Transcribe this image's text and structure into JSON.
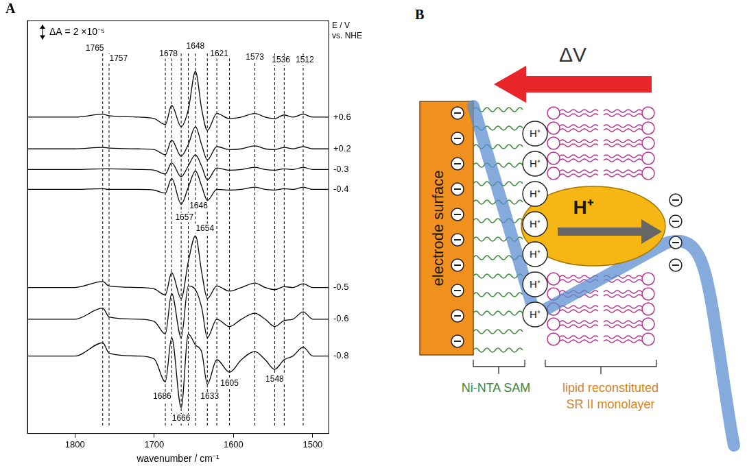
{
  "chart_data": {
    "type": "line",
    "panel_label": "A",
    "x_label": "wavenumber / cm⁻¹",
    "x": [
      1860,
      1800,
      1765,
      1757,
      1720,
      1700,
      1686,
      1678,
      1666,
      1657,
      1648,
      1640,
      1633,
      1621,
      1605,
      1590,
      1573,
      1560,
      1548,
      1536,
      1525,
      1512,
      1500,
      1480
    ],
    "series": [
      {
        "name": "+0.6",
        "color": "#000000",
        "values": [
          42.9,
          42.9,
          43.3,
          43.1,
          42.9,
          42.7,
          41.9,
          44.5,
          41.6,
          43.9,
          49.1,
          43.9,
          41.1,
          43.4,
          42.7,
          42.9,
          43.4,
          42.9,
          42.7,
          43.2,
          42.9,
          43.3,
          42.9,
          42.9
        ]
      },
      {
        "name": "+0.2",
        "color": "#000000",
        "values": [
          38.6,
          38.6,
          38.8,
          38.7,
          38.6,
          38.5,
          37.8,
          39.8,
          37.6,
          39.2,
          41.6,
          39.1,
          37.1,
          38.9,
          38.5,
          38.6,
          39.0,
          38.6,
          38.5,
          38.8,
          38.6,
          38.9,
          38.6,
          38.6
        ]
      },
      {
        "name": "-0.3",
        "color": "#000000",
        "values": [
          35.8,
          35.8,
          35.9,
          35.9,
          35.8,
          35.7,
          35.2,
          36.7,
          34.8,
          36.3,
          37.8,
          36.2,
          34.4,
          36.0,
          35.7,
          35.8,
          36.1,
          35.8,
          35.7,
          35.9,
          35.8,
          36.1,
          35.8,
          35.8
        ]
      },
      {
        "name": "-0.4",
        "color": "#000000",
        "values": [
          33.1,
          33.1,
          33.2,
          33.1,
          33.1,
          33.0,
          32.6,
          34.6,
          31.1,
          33.4,
          35.6,
          33.5,
          31.6,
          33.1,
          33.0,
          33.1,
          33.4,
          33.1,
          33.0,
          33.2,
          33.1,
          33.4,
          33.1,
          33.1
        ]
      },
      {
        "name": "-0.5",
        "color": "#000000",
        "values": [
          19.8,
          19.8,
          20.6,
          20.0,
          19.8,
          19.6,
          18.8,
          21.8,
          18.3,
          23.3,
          26.8,
          21.8,
          18.3,
          20.0,
          19.3,
          19.8,
          20.4,
          19.8,
          19.5,
          19.9,
          19.8,
          20.3,
          19.8,
          19.8
        ]
      },
      {
        "name": "-0.6",
        "color": "#000000",
        "values": [
          15.5,
          15.5,
          17.0,
          15.8,
          15.5,
          15.2,
          13.5,
          19.0,
          13.0,
          20.0,
          19.5,
          17.0,
          13.0,
          15.5,
          14.5,
          15.5,
          16.3,
          15.5,
          14.5,
          15.3,
          15.5,
          16.5,
          15.5,
          15.5
        ]
      },
      {
        "name": "-0.8",
        "color": "#000000",
        "values": [
          10.5,
          10.5,
          12.3,
          10.9,
          10.5,
          10.1,
          7.0,
          13.0,
          3.5,
          13.5,
          12.0,
          11.0,
          6.7,
          10.0,
          8.3,
          10.0,
          11.1,
          10.0,
          8.7,
          10.0,
          10.5,
          11.7,
          10.5,
          10.5
        ]
      }
    ],
    "series_label_header": [
      "E / V",
      "vs. NHE"
    ],
    "legend": "right",
    "xlim": [
      1860,
      1480
    ],
    "xticks": [
      1800,
      1700,
      1600,
      1500
    ],
    "ylim": [
      0,
      56
    ],
    "tick_labels": "x",
    "grid": false,
    "scale_bar": {
      "label": "ΔA = 2 ×10⁻⁵",
      "value": 2
    },
    "reference_lines": [
      1765,
      1757,
      1686,
      1678,
      1666,
      1657,
      1648,
      1633,
      1621,
      1605,
      1573,
      1548,
      1536,
      1512
    ],
    "annotations": [
      {
        "text": "1765",
        "x": 1775,
        "y": 52.2
      },
      {
        "text": "1757",
        "x": 1745,
        "y": 50.8
      },
      {
        "text": "1678",
        "x": 1682,
        "y": 51.5
      },
      {
        "text": "1648",
        "x": 1648,
        "y": 52.5
      },
      {
        "text": "1621",
        "x": 1618,
        "y": 51.5
      },
      {
        "text": "1573",
        "x": 1573,
        "y": 51.0
      },
      {
        "text": "1536",
        "x": 1540,
        "y": 50.6
      },
      {
        "text": "1512",
        "x": 1510,
        "y": 50.6
      },
      {
        "text": "1646",
        "x": 1644,
        "y": 30.8
      },
      {
        "text": "1657",
        "x": 1662,
        "y": 29.3
      },
      {
        "text": "1654",
        "x": 1636,
        "y": 27.8
      },
      {
        "text": "1686",
        "x": 1690,
        "y": 5.0
      },
      {
        "text": "1666",
        "x": 1666,
        "y": 2.0
      },
      {
        "text": "1633",
        "x": 1630,
        "y": 5.0
      },
      {
        "text": "1605",
        "x": 1605,
        "y": 6.8
      },
      {
        "text": "1548",
        "x": 1548,
        "y": 7.3
      }
    ]
  },
  "diagram": {
    "panel_label": "B",
    "arrow_label": "ΔV",
    "electrode_label": "electrode surface",
    "sam_protons": [
      "H⁺",
      "H⁺",
      "H⁺",
      "H⁺",
      "H⁺",
      "H⁺",
      "H⁺"
    ],
    "protein_label": "H⁺",
    "sam_label": "Ni-NTA SAM",
    "lipid_label": [
      "lipid reconstituted",
      "SR II monolayer"
    ]
  }
}
